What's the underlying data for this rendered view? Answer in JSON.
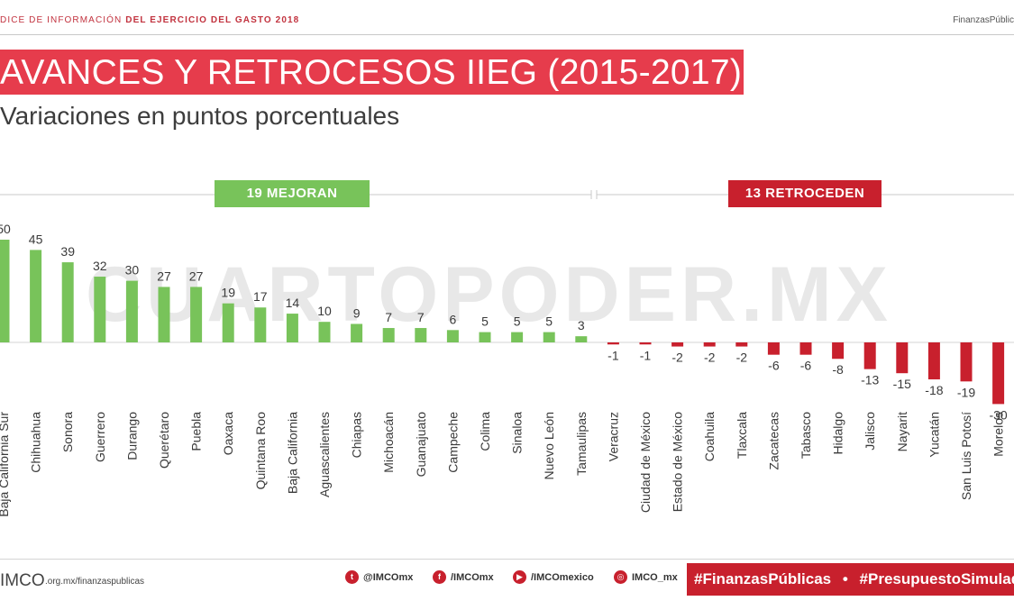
{
  "header": {
    "left_prefix": "DICE DE INFORMACIÓN",
    "left_bold": "DEL EJERCICIO DEL GASTO 2018",
    "right": "FinanzasPúblic"
  },
  "title": "AVANCES Y RETROCESOS IIEG (2015-2017)",
  "subtitle": "Variaciones en puntos porcentuales",
  "groups": {
    "improve_label": "19 MEJORAN",
    "decline_label": "13 RETROCEDEN"
  },
  "watermark": "CUARTOPODER.MX",
  "colors": {
    "positive": "#78c35a",
    "negative": "#c8202d",
    "title_bg": "#e63c4c"
  },
  "chart_data": {
    "type": "bar",
    "categories": [
      "Baja California Sur",
      "Chihuahua",
      "Sonora",
      "Guerrero",
      "Durango",
      "Querétaro",
      "Puebla",
      "Oaxaca",
      "Quintana Roo",
      "Baja California",
      "Aguascalientes",
      "Chiapas",
      "Michoacán",
      "Guanajuato",
      "Campeche",
      "Colima",
      "Sinaloa",
      "Nuevo León",
      "Tamaulipas",
      "Veracruz",
      "Ciudad de México",
      "Estado de México",
      "Coahuila",
      "Tlaxcala",
      "Zacatecas",
      "Tabasco",
      "Hidalgo",
      "Jalisco",
      "Nayarit",
      "Yucatán",
      "San Luis Potosí",
      "Morelos"
    ],
    "values": [
      50,
      45,
      39,
      32,
      30,
      27,
      27,
      19,
      17,
      14,
      10,
      9,
      7,
      7,
      6,
      5,
      5,
      5,
      3,
      -1,
      -1,
      -2,
      -2,
      -2,
      -6,
      -6,
      -8,
      -13,
      -15,
      -18,
      -19,
      -30
    ],
    "value_labels": [
      "50",
      "45",
      "39",
      "32",
      "30",
      "27",
      "27",
      "19",
      "17",
      "14",
      "10",
      "9",
      "7",
      "7",
      "6",
      "5",
      "5",
      "5",
      "3",
      "-1",
      "-1",
      "-2",
      "-2",
      "-2",
      "-6",
      "-6",
      "-8",
      "-13",
      "-15",
      "-18",
      "-19",
      "-30"
    ],
    "ylim": [
      -30,
      50
    ],
    "xlabel": "",
    "ylabel": ""
  },
  "footer": {
    "logo": "IMCO",
    "url": ".org.mx/finanzaspublicas",
    "social": [
      {
        "icon": "twitter-icon",
        "glyph": "t",
        "text": "@IMCOmx"
      },
      {
        "icon": "facebook-icon",
        "glyph": "f",
        "text": "/IMCOmx"
      },
      {
        "icon": "youtube-icon",
        "glyph": "▶",
        "text": "/IMCOmexico"
      },
      {
        "icon": "instagram-icon",
        "glyph": "◎",
        "text": "IMCO_mx"
      }
    ],
    "hashtag1": "#FinanzasPúblicas",
    "separator": "•",
    "hashtag2": "#PresupuestoSimulado"
  }
}
